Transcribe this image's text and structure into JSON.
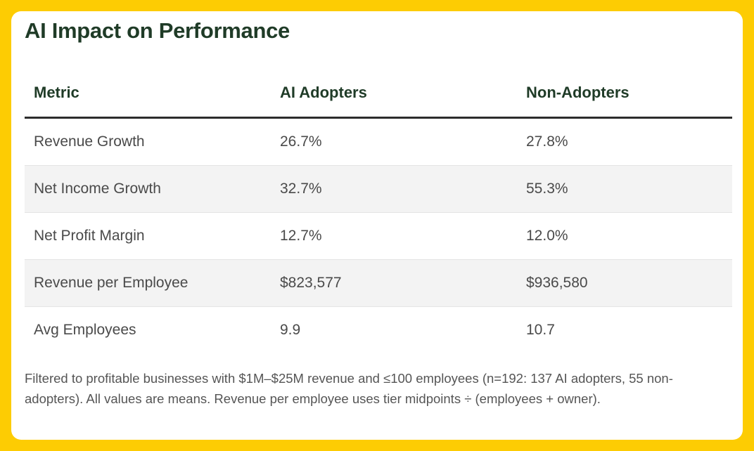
{
  "title": "AI Impact on Performance",
  "table": {
    "headers": [
      "Metric",
      "AI Adopters",
      "Non-Adopters"
    ],
    "rows": [
      [
        "Revenue Growth",
        "26.7%",
        "27.8%"
      ],
      [
        "Net Income Growth",
        "32.7%",
        "55.3%"
      ],
      [
        "Net Profit Margin",
        "12.7%",
        "12.0%"
      ],
      [
        "Revenue per Employee",
        "$823,577",
        "$936,580"
      ],
      [
        "Avg Employees",
        "9.9",
        "10.7"
      ]
    ]
  },
  "footnote": "Filtered to profitable businesses with $1M–$25M revenue and ≤100 employees (n=192: 137 AI adopters, 55 non-adopters). All values are means. Revenue per employee uses tier midpoints ÷ (employees + owner).",
  "colors": {
    "background": "#fdcc03",
    "heading": "#1f3b27",
    "alt_row": "#f3f3f3"
  }
}
